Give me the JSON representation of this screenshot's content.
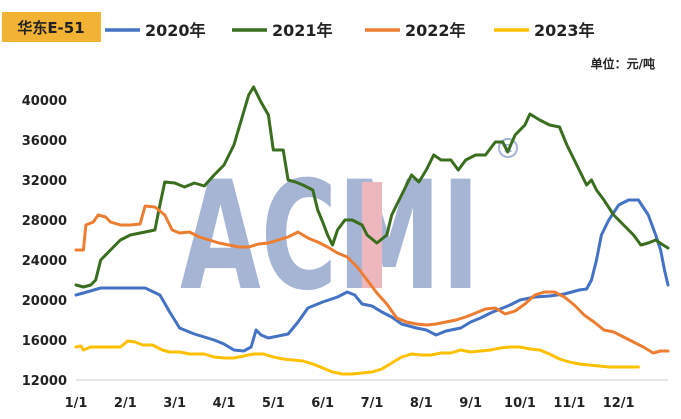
{
  "chart_data": {
    "type": "line",
    "title": "华东E-51",
    "unit": "单位：元/吨",
    "watermark": "ACMI",
    "xlabel": "",
    "ylabel": "",
    "ylim": [
      12000,
      42000
    ],
    "yticks": [
      12000,
      16000,
      20000,
      24000,
      28000,
      32000,
      36000,
      40000
    ],
    "xticks": [
      "1/1",
      "2/1",
      "3/1",
      "4/1",
      "5/1",
      "6/1",
      "7/1",
      "8/1",
      "9/1",
      "10/1",
      "11/1",
      "12/1"
    ],
    "grid": false,
    "legend": "top",
    "colors": {
      "2020年": "#4472C4",
      "2021年": "#3B6D1F",
      "2022年": "#ED7D31",
      "2023年": "#FFC000",
      "watermark": "#8A9DC8",
      "watermark_accent": "#E9A0A8",
      "title_bg": "#F2B233"
    },
    "series": [
      {
        "name": "2020年",
        "color": "#4472C4",
        "points": [
          [
            0,
            20500
          ],
          [
            0.15,
            20700
          ],
          [
            0.5,
            21200
          ],
          [
            1.4,
            21200
          ],
          [
            1.7,
            20500
          ],
          [
            1.9,
            18800
          ],
          [
            2.1,
            17200
          ],
          [
            2.2,
            17000
          ],
          [
            2.4,
            16600
          ],
          [
            2.6,
            16300
          ],
          [
            2.8,
            16000
          ],
          [
            3,
            15600
          ],
          [
            3.2,
            15000
          ],
          [
            3.4,
            14900
          ],
          [
            3.55,
            15300
          ],
          [
            3.65,
            17000
          ],
          [
            3.75,
            16500
          ],
          [
            3.9,
            16200
          ],
          [
            4.1,
            16400
          ],
          [
            4.3,
            16600
          ],
          [
            4.5,
            17800
          ],
          [
            4.7,
            19200
          ],
          [
            5,
            19800
          ],
          [
            5.3,
            20300
          ],
          [
            5.5,
            20800
          ],
          [
            5.65,
            20500
          ],
          [
            5.8,
            19600
          ],
          [
            6,
            19400
          ],
          [
            6.2,
            18800
          ],
          [
            6.4,
            18300
          ],
          [
            6.6,
            17600
          ],
          [
            6.9,
            17200
          ],
          [
            7.1,
            17000
          ],
          [
            7.3,
            16500
          ],
          [
            7.5,
            16900
          ],
          [
            7.8,
            17200
          ],
          [
            8.0,
            17800
          ],
          [
            8.2,
            18200
          ],
          [
            8.4,
            18700
          ],
          [
            8.6,
            19100
          ],
          [
            8.8,
            19500
          ],
          [
            9.0,
            20000
          ],
          [
            9.3,
            20300
          ],
          [
            9.6,
            20400
          ],
          [
            9.9,
            20600
          ],
          [
            10.2,
            21000
          ],
          [
            10.35,
            21100
          ],
          [
            10.45,
            22000
          ],
          [
            10.55,
            24000
          ],
          [
            10.65,
            26500
          ],
          [
            10.8,
            28000
          ],
          [
            11,
            29500
          ],
          [
            11.2,
            30000
          ],
          [
            11.4,
            30000
          ],
          [
            11.6,
            28500
          ],
          [
            11.75,
            26500
          ],
          [
            11.85,
            25000
          ],
          [
            11.93,
            23000
          ],
          [
            12.0,
            21500
          ]
        ]
      },
      {
        "name": "2021年",
        "color": "#3B6D1F",
        "points": [
          [
            0,
            21500
          ],
          [
            0.15,
            21300
          ],
          [
            0.3,
            21500
          ],
          [
            0.4,
            22000
          ],
          [
            0.5,
            24000
          ],
          [
            0.7,
            25000
          ],
          [
            0.9,
            26000
          ],
          [
            1.1,
            26500
          ],
          [
            1.4,
            26800
          ],
          [
            1.6,
            27000
          ],
          [
            1.7,
            29500
          ],
          [
            1.8,
            31800
          ],
          [
            2.0,
            31700
          ],
          [
            2.2,
            31300
          ],
          [
            2.4,
            31700
          ],
          [
            2.6,
            31400
          ],
          [
            2.8,
            32500
          ],
          [
            3.0,
            33500
          ],
          [
            3.2,
            35500
          ],
          [
            3.35,
            38000
          ],
          [
            3.5,
            40500
          ],
          [
            3.6,
            41300
          ],
          [
            3.75,
            39800
          ],
          [
            3.9,
            38500
          ],
          [
            4.0,
            35000
          ],
          [
            4.2,
            35000
          ],
          [
            4.3,
            32000
          ],
          [
            4.45,
            31800
          ],
          [
            4.6,
            31500
          ],
          [
            4.8,
            31000
          ],
          [
            4.9,
            29000
          ],
          [
            5.0,
            27800
          ],
          [
            5.1,
            26500
          ],
          [
            5.2,
            25500
          ],
          [
            5.3,
            27000
          ],
          [
            5.45,
            28000
          ],
          [
            5.6,
            28000
          ],
          [
            5.8,
            27500
          ],
          [
            5.9,
            26500
          ],
          [
            6.1,
            25700
          ],
          [
            6.3,
            26500
          ],
          [
            6.4,
            28500
          ],
          [
            6.6,
            30500
          ],
          [
            6.8,
            32500
          ],
          [
            6.95,
            31800
          ],
          [
            7.1,
            33000
          ],
          [
            7.25,
            34500
          ],
          [
            7.4,
            34000
          ],
          [
            7.6,
            34000
          ],
          [
            7.75,
            33000
          ],
          [
            7.9,
            34000
          ],
          [
            8.1,
            34500
          ],
          [
            8.3,
            34500
          ],
          [
            8.5,
            35800
          ],
          [
            8.65,
            35800
          ],
          [
            8.75,
            34800
          ],
          [
            8.9,
            36500
          ],
          [
            9.1,
            37500
          ],
          [
            9.2,
            38600
          ],
          [
            9.4,
            38000
          ],
          [
            9.6,
            37500
          ],
          [
            9.8,
            37300
          ],
          [
            9.95,
            35500
          ],
          [
            10.1,
            34000
          ],
          [
            10.2,
            33000
          ],
          [
            10.35,
            31500
          ],
          [
            10.45,
            32000
          ],
          [
            10.55,
            31000
          ],
          [
            10.7,
            30000
          ],
          [
            10.9,
            28500
          ],
          [
            11.1,
            27500
          ],
          [
            11.3,
            26500
          ],
          [
            11.45,
            25500
          ],
          [
            11.6,
            25700
          ],
          [
            11.75,
            26000
          ],
          [
            11.9,
            25500
          ],
          [
            12.0,
            25200
          ]
        ]
      },
      {
        "name": "2022年",
        "color": "#ED7D31",
        "points": [
          [
            0,
            25000
          ],
          [
            0.15,
            25000
          ],
          [
            0.2,
            27500
          ],
          [
            0.35,
            27800
          ],
          [
            0.45,
            28500
          ],
          [
            0.6,
            28300
          ],
          [
            0.7,
            27800
          ],
          [
            0.9,
            27500
          ],
          [
            1.1,
            27500
          ],
          [
            1.3,
            27600
          ],
          [
            1.4,
            29400
          ],
          [
            1.6,
            29300
          ],
          [
            1.8,
            28500
          ],
          [
            1.95,
            27000
          ],
          [
            2.1,
            26700
          ],
          [
            2.3,
            26800
          ],
          [
            2.5,
            26300
          ],
          [
            2.7,
            26000
          ],
          [
            2.9,
            25700
          ],
          [
            3.1,
            25500
          ],
          [
            3.3,
            25300
          ],
          [
            3.5,
            25300
          ],
          [
            3.7,
            25600
          ],
          [
            3.9,
            25700
          ],
          [
            4.1,
            26000
          ],
          [
            4.3,
            26300
          ],
          [
            4.5,
            26800
          ],
          [
            4.7,
            26200
          ],
          [
            4.9,
            25800
          ],
          [
            5.1,
            25300
          ],
          [
            5.3,
            24700
          ],
          [
            5.5,
            24300
          ],
          [
            5.7,
            23300
          ],
          [
            5.9,
            22000
          ],
          [
            6.1,
            20700
          ],
          [
            6.3,
            19600
          ],
          [
            6.5,
            18200
          ],
          [
            6.7,
            17800
          ],
          [
            6.9,
            17600
          ],
          [
            7.1,
            17500
          ],
          [
            7.3,
            17600
          ],
          [
            7.5,
            17800
          ],
          [
            7.7,
            18000
          ],
          [
            7.9,
            18300
          ],
          [
            8.1,
            18700
          ],
          [
            8.3,
            19100
          ],
          [
            8.5,
            19200
          ],
          [
            8.7,
            18600
          ],
          [
            8.9,
            18900
          ],
          [
            9.1,
            19600
          ],
          [
            9.3,
            20500
          ],
          [
            9.5,
            20800
          ],
          [
            9.7,
            20800
          ],
          [
            9.9,
            20300
          ],
          [
            10.1,
            19500
          ],
          [
            10.3,
            18500
          ],
          [
            10.5,
            17800
          ],
          [
            10.7,
            17000
          ],
          [
            10.9,
            16800
          ],
          [
            11.1,
            16300
          ],
          [
            11.3,
            15800
          ],
          [
            11.5,
            15300
          ],
          [
            11.7,
            14700
          ],
          [
            11.85,
            14900
          ],
          [
            12.0,
            14900
          ]
        ]
      },
      {
        "name": "2023年",
        "color": "#FFC000",
        "points": [
          [
            0,
            15300
          ],
          [
            0.1,
            15400
          ],
          [
            0.15,
            15000
          ],
          [
            0.3,
            15300
          ],
          [
            0.5,
            15300
          ],
          [
            0.7,
            15300
          ],
          [
            0.9,
            15300
          ],
          [
            1.05,
            15900
          ],
          [
            1.2,
            15800
          ],
          [
            1.35,
            15500
          ],
          [
            1.55,
            15500
          ],
          [
            1.75,
            15000
          ],
          [
            1.9,
            14800
          ],
          [
            2.1,
            14800
          ],
          [
            2.3,
            14600
          ],
          [
            2.6,
            14600
          ],
          [
            2.8,
            14300
          ],
          [
            3.0,
            14200
          ],
          [
            3.2,
            14200
          ],
          [
            3.4,
            14400
          ],
          [
            3.6,
            14600
          ],
          [
            3.8,
            14600
          ],
          [
            4.0,
            14300
          ],
          [
            4.2,
            14100
          ],
          [
            4.4,
            14000
          ],
          [
            4.6,
            13900
          ],
          [
            4.8,
            13600
          ],
          [
            5.0,
            13200
          ],
          [
            5.2,
            12800
          ],
          [
            5.4,
            12600
          ],
          [
            5.6,
            12600
          ],
          [
            5.8,
            12700
          ],
          [
            6.0,
            12800
          ],
          [
            6.2,
            13100
          ],
          [
            6.4,
            13700
          ],
          [
            6.6,
            14300
          ],
          [
            6.8,
            14600
          ],
          [
            7.0,
            14500
          ],
          [
            7.2,
            14500
          ],
          [
            7.4,
            14700
          ],
          [
            7.6,
            14700
          ],
          [
            7.8,
            15000
          ],
          [
            8.0,
            14800
          ],
          [
            8.2,
            14900
          ],
          [
            8.4,
            15000
          ],
          [
            8.6,
            15200
          ],
          [
            8.8,
            15300
          ],
          [
            9.0,
            15300
          ],
          [
            9.2,
            15100
          ],
          [
            9.4,
            15000
          ],
          [
            9.6,
            14600
          ],
          [
            9.8,
            14100
          ],
          [
            10.0,
            13800
          ],
          [
            10.2,
            13600
          ],
          [
            10.4,
            13500
          ],
          [
            10.6,
            13400
          ],
          [
            10.8,
            13300
          ],
          [
            11.0,
            13300
          ],
          [
            11.2,
            13300
          ],
          [
            11.4,
            13300
          ]
        ]
      }
    ]
  }
}
